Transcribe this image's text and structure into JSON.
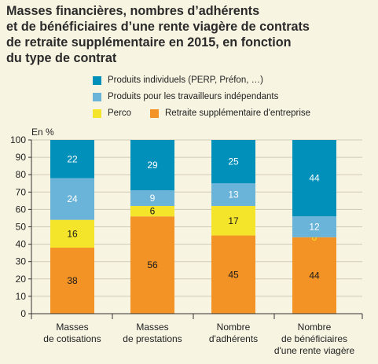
{
  "title_lines": [
    "Masses financières, nombres d’adhérents",
    "et de bénéficiaires d’une rente viagère de contrats",
    "de retraite supplémentaire en 2015, en fonction",
    "du type de contrat"
  ],
  "colors": {
    "individuels": "#0090ba",
    "independants": "#6ab3d9",
    "perco": "#f5e52a",
    "entreprise": "#f39326",
    "background": "#f8f4e2",
    "grid": "#cfcab6",
    "axis": "#333333"
  },
  "chart_data": {
    "type": "bar",
    "stacked": true,
    "ylabel": "En %",
    "ylim": [
      0,
      100
    ],
    "yticks": [
      0,
      10,
      20,
      30,
      40,
      50,
      60,
      70,
      80,
      90,
      100
    ],
    "grid": true,
    "legend_position": "top-right",
    "categories": [
      [
        "Masses",
        "de cotisations"
      ],
      [
        "Masses",
        "de prestations"
      ],
      [
        "Nombre",
        "d'adhérents"
      ],
      [
        "Nombre",
        "de bénéficiaires",
        "d'une rente viagère"
      ]
    ],
    "series": [
      {
        "key": "entreprise",
        "name": "Retraite supplémentaire d'entreprise",
        "values": [
          38,
          56,
          45,
          44
        ],
        "labels": [
          "38",
          "56",
          "45",
          "44"
        ],
        "label_color": "#1a1a1a"
      },
      {
        "key": "perco",
        "name": "Perco",
        "values": [
          16,
          6,
          17,
          0
        ],
        "labels": [
          "16",
          "6",
          "17",
          "0"
        ],
        "label_color": "#1a1a1a"
      },
      {
        "key": "independants",
        "name": "Produits pour les travailleurs indépendants",
        "values": [
          24,
          9,
          13,
          12
        ],
        "labels": [
          "24",
          "9",
          "13",
          "12"
        ],
        "label_color": "#ffffff"
      },
      {
        "key": "individuels",
        "name": "Produits individuels (PERP, Préfon, …)",
        "values": [
          22,
          29,
          25,
          44
        ],
        "labels": [
          "22",
          "29",
          "25",
          "44"
        ],
        "label_color": "#ffffff"
      }
    ],
    "legend": [
      {
        "key": "individuels",
        "label": "Produits individuels (PERP, Préfon, …)"
      },
      {
        "key": "independants",
        "label": "Produits pour les travailleurs indépendants"
      },
      {
        "key": "perco",
        "label": "Perco"
      },
      {
        "key": "entreprise",
        "label": "Retraite supplémentaire d'entreprise"
      }
    ]
  }
}
